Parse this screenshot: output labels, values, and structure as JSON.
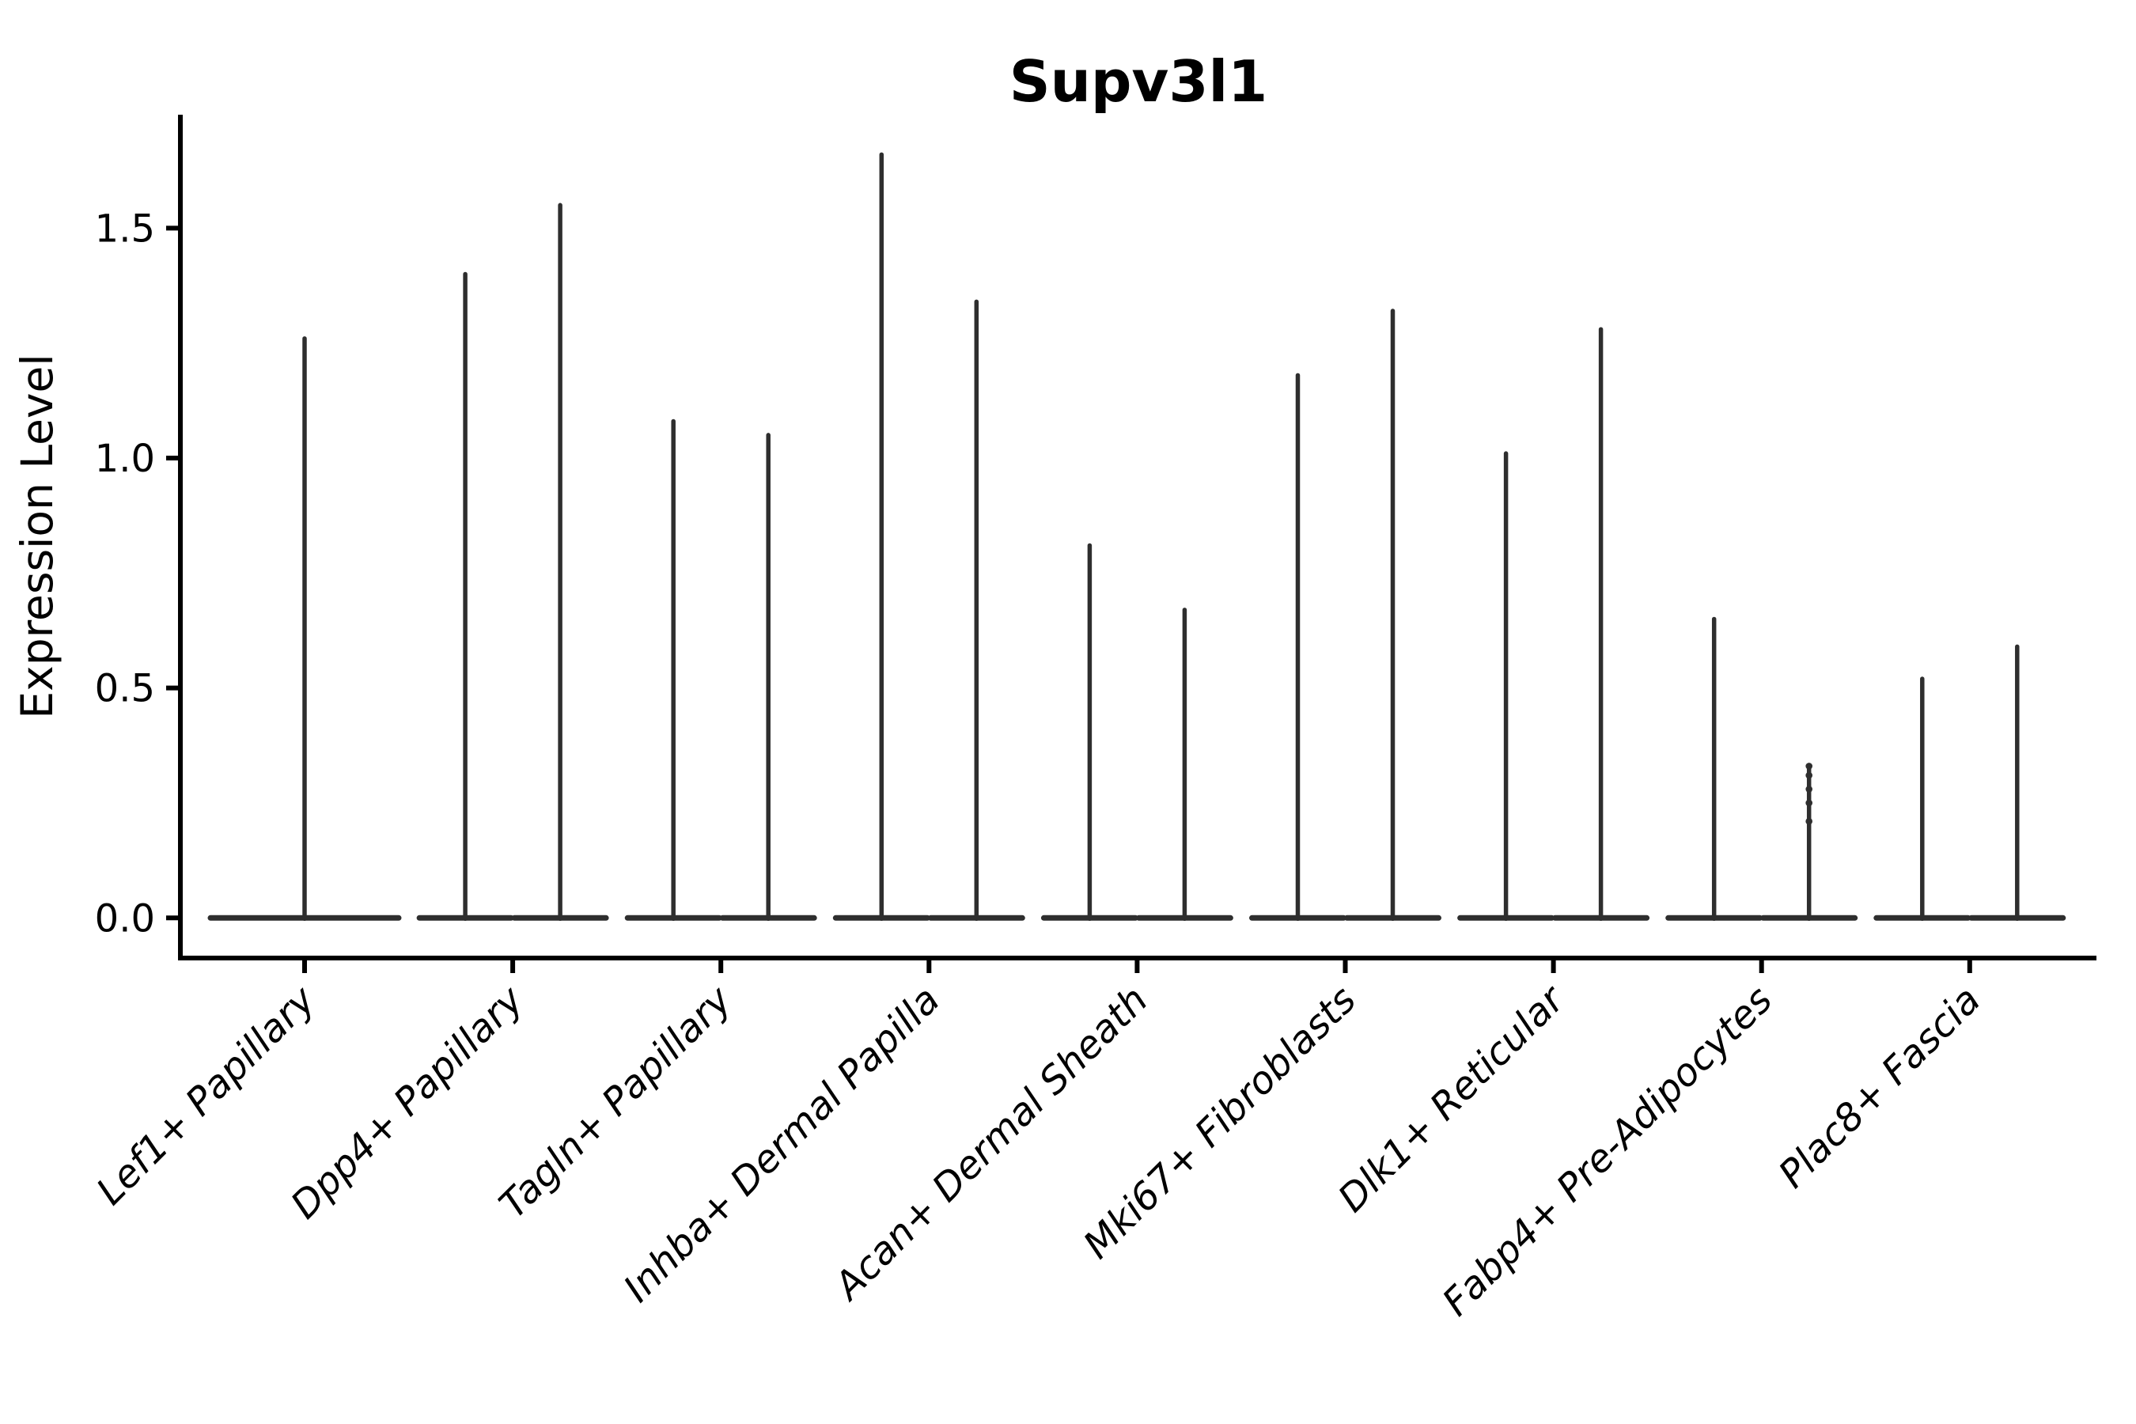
{
  "chart_data": {
    "type": "violin",
    "title": "Supv3l1",
    "xlabel": "",
    "ylabel": "Expression Level",
    "grid": false,
    "legend": "none",
    "ylim": [
      -0.09,
      1.75
    ],
    "yticks": {
      "values": [
        0.0,
        0.5,
        1.0,
        1.5
      ],
      "labels": [
        "0.0",
        "0.5",
        "1.0",
        "1.5"
      ]
    },
    "categories": [
      "Lef1+ Papillary",
      "Dpp4+ Papillary",
      "Tagln+ Papillary",
      "Inhba+ Dermal Papilla",
      "Acan+ Dermal Sheath",
      "Mki67+ Fibroblasts",
      "Dlk1+ Reticular",
      "Fabp4+ Pre-Adipocytes",
      "Plac8+ Fascia"
    ],
    "series": [
      {
        "category": "Lef1+ Papillary",
        "violins": [
          {
            "slot": 0,
            "max": 1.26
          }
        ]
      },
      {
        "category": "Dpp4+ Papillary",
        "violins": [
          {
            "slot": -1,
            "max": 1.4
          },
          {
            "slot": 1,
            "max": 1.55
          }
        ]
      },
      {
        "category": "Tagln+ Papillary",
        "violins": [
          {
            "slot": -1,
            "max": 1.08
          },
          {
            "slot": 1,
            "max": 1.05
          }
        ]
      },
      {
        "category": "Inhba+ Dermal Papilla",
        "violins": [
          {
            "slot": -1,
            "max": 1.66
          },
          {
            "slot": 1,
            "max": 1.34
          }
        ]
      },
      {
        "category": "Acan+ Dermal Sheath",
        "violins": [
          {
            "slot": -1,
            "max": 0.81
          },
          {
            "slot": 1,
            "max": 0.67
          }
        ]
      },
      {
        "category": "Mki67+ Fibroblasts",
        "violins": [
          {
            "slot": -1,
            "max": 1.18
          },
          {
            "slot": 1,
            "max": 1.32
          }
        ]
      },
      {
        "category": "Dlk1+ Reticular",
        "violins": [
          {
            "slot": -1,
            "max": 1.01
          },
          {
            "slot": 1,
            "max": 1.28
          }
        ]
      },
      {
        "category": "Fabp4+ Pre-Adipocytes",
        "violins": [
          {
            "slot": -1,
            "max": 0.65
          },
          {
            "slot": 1,
            "max": 0.33,
            "points": [
              0.33,
              0.31,
              0.28,
              0.25,
              0.21
            ]
          }
        ]
      },
      {
        "category": "Plac8+ Fascia",
        "violins": [
          {
            "slot": -1,
            "max": 0.52
          },
          {
            "slot": 1,
            "max": 0.59
          }
        ]
      }
    ],
    "baseline_value": 0.0,
    "colors": {
      "violin": "#2e2e2e",
      "axis": "#000000",
      "text": "#000000",
      "background": "#ffffff"
    }
  }
}
